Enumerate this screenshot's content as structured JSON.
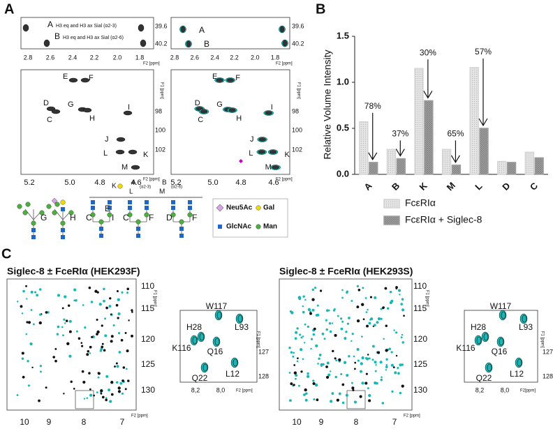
{
  "panel_a": {
    "label": "A",
    "top_x_ticks": [
      "2.8",
      "2.6",
      "2.4",
      "2.2",
      "2.0",
      "1.8"
    ],
    "top_y_ticks": [
      "39.6",
      "40.2"
    ],
    "x_axis_label": "F2 [ppm]",
    "y_axis_label": "F1 [ppm]",
    "top_left_peaks": [
      {
        "letter": "A",
        "text": "H3 eq and H3 ax Sial (α2-3)"
      },
      {
        "letter": "B",
        "text": "H3 eq and H3 ax Sial (α2-6)"
      }
    ],
    "top_right_peaks": [
      "A",
      "B"
    ],
    "main_x_ticks": [
      "5.2",
      "5.0",
      "4.8",
      "4.6"
    ],
    "main_y_ticks": [
      "98",
      "100",
      "102"
    ],
    "main_peaks": [
      "E",
      "F",
      "D",
      "G",
      "I",
      "C",
      "H",
      "J",
      "L",
      "K",
      "M"
    ],
    "glycan_labels": [
      "G",
      "H",
      "C",
      "I",
      "E",
      "C",
      "F",
      "D",
      "F",
      "K",
      "A",
      "L",
      "M",
      "B",
      "(α2-3)",
      "(α2-6)"
    ],
    "legend": [
      "Neu5Ac",
      "Gal",
      "GlcNAc",
      "Man"
    ]
  },
  "chart_data": {
    "type": "bar",
    "label": "B",
    "y_axis_label": "Relative Volume Intensity",
    "categories": [
      "A",
      "B",
      "K",
      "M",
      "L",
      "D",
      "C"
    ],
    "series": [
      {
        "name": "FcεRIα",
        "color": "#d4d4d4",
        "values": [
          0.57,
          0.27,
          1.15,
          0.27,
          1.16,
          0.14,
          0.24
        ]
      },
      {
        "name": "FcεRIα + Siglec-8",
        "color": "#9e9e9e",
        "values": [
          0.13,
          0.17,
          0.8,
          0.1,
          0.5,
          0.13,
          0.18
        ]
      }
    ],
    "annotations": [
      "78%",
      "37%",
      "30%",
      "65%",
      "57%"
    ],
    "ylim": [
      0,
      1.5
    ],
    "yticks": [
      {
        "value": 0,
        "label": "0.0"
      },
      0.5,
      {
        "value": 1,
        "label": "1.0"
      },
      1.5
    ]
  },
  "panel_c": {
    "label": "C",
    "spectra": [
      {
        "title": "Siglec-8 ± FceRIα (HEK293F)",
        "x_ticks": [
          "10",
          "9",
          "8",
          "7"
        ],
        "y_ticks": [
          "110",
          "115",
          "120",
          "125",
          "130"
        ],
        "x_axis_label": "F2 [ppm]",
        "y_axis_label": "F1 [ppm]",
        "inset": {
          "peaks": [
            "W117",
            "H28",
            "L93",
            "K116",
            "Q16",
            "Q22",
            "L12"
          ],
          "x_ticks": [
            "8,2",
            "8,0"
          ],
          "y_ticks": [
            "127",
            "128"
          ],
          "x_axis_label": "F2 [ppm]",
          "y_axis_label": "F1 [ppm]"
        }
      },
      {
        "title": "Siglec-8 ± FceRIα (HEK293S)",
        "x_ticks": [
          "10",
          "9",
          "8",
          "7"
        ],
        "y_ticks": [
          "110",
          "115",
          "120",
          "125",
          "130"
        ],
        "x_axis_label": "F2 [ppm]",
        "y_axis_label": "F1 [ppm]",
        "inset": {
          "peaks": [
            "W117",
            "H28",
            "L93",
            "K116",
            "Q16",
            "Q22",
            "L12"
          ],
          "x_ticks": [
            "8,2",
            "8,0"
          ],
          "y_ticks": [
            "127",
            "128"
          ],
          "x_axis_label": "F2[ppm]",
          "y_axis_label": "F1 [ppm]"
        }
      }
    ]
  }
}
